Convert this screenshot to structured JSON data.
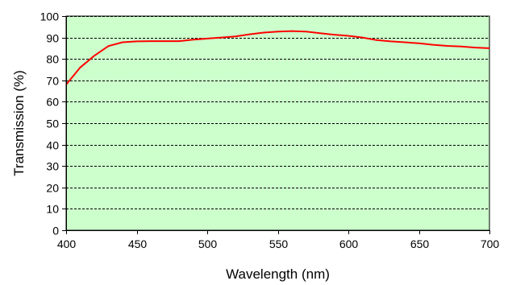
{
  "chart_data": {
    "type": "line",
    "xlabel": "Wavelength (nm)",
    "ylabel": "Transmission (%)",
    "xlim": [
      400,
      700
    ],
    "ylim": [
      0,
      100
    ],
    "x_ticks": [
      400,
      450,
      500,
      550,
      600,
      650,
      700
    ],
    "y_ticks": [
      0,
      10,
      20,
      30,
      40,
      50,
      60,
      70,
      80,
      90,
      100
    ],
    "grid": "horizontal-dashed",
    "colors": {
      "plot_background": "#ccffcc",
      "series": "#ff0000",
      "grid": "#000000"
    },
    "series": [
      {
        "x": [
          400,
          410,
          420,
          430,
          440,
          450,
          460,
          470,
          480,
          490,
          500,
          510,
          520,
          530,
          540,
          550,
          560,
          570,
          580,
          590,
          600,
          610,
          620,
          630,
          640,
          650,
          660,
          670,
          680,
          690,
          700
        ],
        "y": [
          68,
          76,
          81.5,
          86,
          87.8,
          88.2,
          88.3,
          88.3,
          88.3,
          89,
          89.5,
          90,
          90.5,
          91.5,
          92.3,
          92.8,
          93,
          92.8,
          92,
          91.3,
          90.8,
          90,
          88.8,
          88.2,
          87.8,
          87.3,
          86.6,
          86.1,
          85.8,
          85.3,
          85
        ]
      }
    ]
  }
}
